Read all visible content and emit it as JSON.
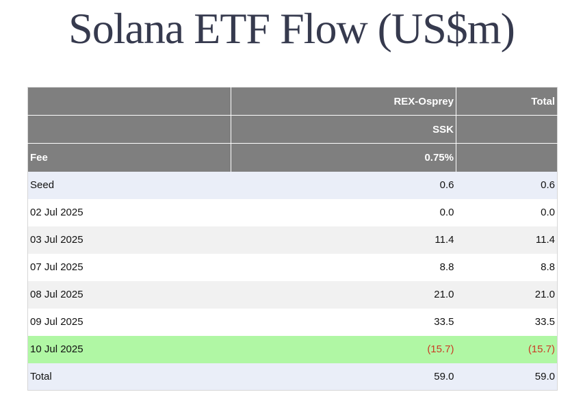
{
  "title": "Solana ETF Flow (US$m)",
  "header": {
    "row1": [
      "",
      "REX-Osprey",
      "Total"
    ],
    "row2": [
      "",
      "SSK",
      ""
    ],
    "row3": [
      "Fee",
      "0.75%",
      ""
    ]
  },
  "rows": [
    {
      "label": "Seed",
      "rex": "0.6",
      "total": "0.6"
    },
    {
      "label": "02 Jul 2025",
      "rex": "0.0",
      "total": "0.0"
    },
    {
      "label": "03 Jul 2025",
      "rex": "11.4",
      "total": "11.4"
    },
    {
      "label": "07 Jul 2025",
      "rex": "8.8",
      "total": "8.8"
    },
    {
      "label": "08 Jul 2025",
      "rex": "21.0",
      "total": "21.0"
    },
    {
      "label": "09 Jul 2025",
      "rex": "33.5",
      "total": "33.5"
    },
    {
      "label": "10 Jul 2025",
      "rex": "(15.7)",
      "total": "(15.7)"
    },
    {
      "label": "Total",
      "rex": "59.0",
      "total": "59.0"
    }
  ],
  "colors": {
    "header_bg": "#7f7f7f",
    "highlight_row": "#b0f7a4",
    "negative_text": "#cc3a24",
    "title_text": "#363a4e"
  }
}
